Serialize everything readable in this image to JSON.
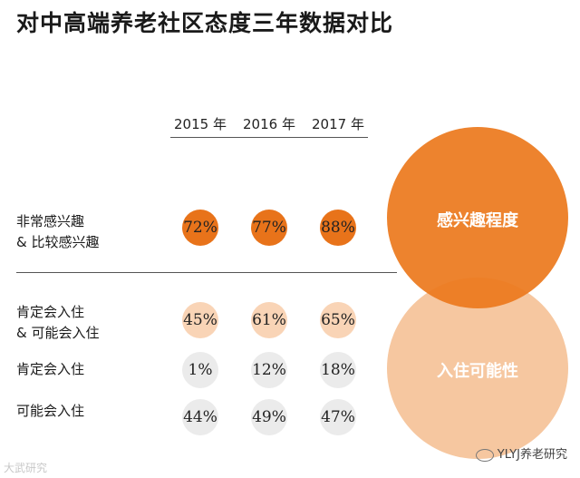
{
  "title": "对中高端养老社区态度三年数据对比",
  "colors": {
    "interest_dot": "#e8731a",
    "combined_dot": "#f9d4b6",
    "neutral_dot": "#ebebeb",
    "interest_circle": "#ec7a1e",
    "willingness_circle": "#f6c7a0"
  },
  "chart_data": {
    "type": "table",
    "columns": [
      "2015 年",
      "2016 年",
      "2017 年"
    ],
    "rows": [
      {
        "label_line1": "非常感兴趣",
        "label_line2": "& 比较感兴趣",
        "values": [
          "72%",
          "77%",
          "88%"
        ]
      },
      {
        "label_line1": "肯定会入住",
        "label_line2": "& 可能会入住",
        "values": [
          "45%",
          "61%",
          "65%"
        ]
      },
      {
        "label_line1": "肯定会入住",
        "label_line2": "",
        "values": [
          "1%",
          "12%",
          "18%"
        ]
      },
      {
        "label_line1": "可能会入住",
        "label_line2": "",
        "values": [
          "44%",
          "49%",
          "47%"
        ]
      }
    ],
    "venn_labels": [
      "感兴趣程度",
      "入住可能性"
    ]
  },
  "watermarks": {
    "left": "大武研究",
    "right": "YLYJ养老研究"
  }
}
